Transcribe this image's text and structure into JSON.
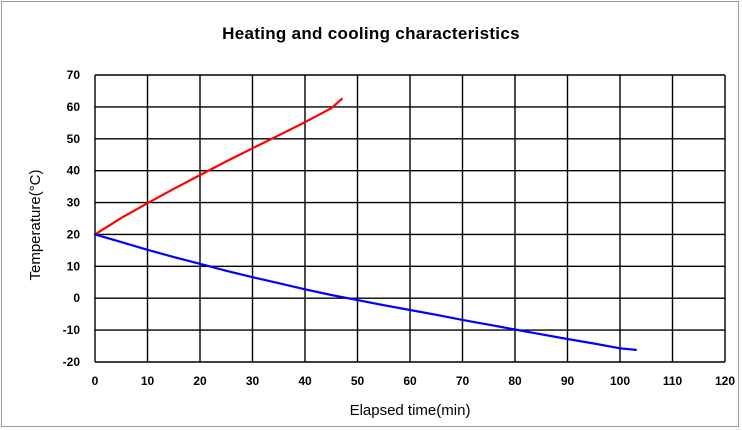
{
  "chart_data": {
    "type": "line",
    "title": "Heating and cooling characteristics",
    "xlabel": "Elapsed time(min)",
    "ylabel": "Temperature(°C)",
    "xlim": [
      0,
      120
    ],
    "ylim": [
      -20,
      70
    ],
    "xticks": [
      0,
      10,
      20,
      30,
      40,
      50,
      60,
      70,
      80,
      90,
      100,
      110,
      120
    ],
    "yticks": [
      -20,
      -10,
      0,
      10,
      20,
      30,
      40,
      50,
      60,
      70
    ],
    "grid": true,
    "legend": "none",
    "series": [
      {
        "color": "#ff0000",
        "x": [
          0,
          5,
          10,
          15,
          20,
          25,
          30,
          35,
          40,
          45,
          47
        ],
        "y": [
          20,
          25.2,
          29.8,
          34.3,
          38.6,
          42.9,
          47,
          51.1,
          55.2,
          59.6,
          62.5
        ]
      },
      {
        "color": "#0000ff",
        "x": [
          0,
          5,
          10,
          15,
          20,
          25,
          30,
          35,
          40,
          45,
          50,
          55,
          60,
          65,
          70,
          75,
          80,
          85,
          90,
          95,
          100,
          103
        ],
        "y": [
          20,
          17.6,
          15.2,
          12.9,
          10.8,
          8.6,
          6.6,
          4.7,
          2.8,
          1,
          -0.6,
          -2.2,
          -3.7,
          -5.2,
          -6.8,
          -8.3,
          -9.8,
          -11.3,
          -12.8,
          -14.2,
          -15.7,
          -16.2
        ]
      }
    ]
  }
}
